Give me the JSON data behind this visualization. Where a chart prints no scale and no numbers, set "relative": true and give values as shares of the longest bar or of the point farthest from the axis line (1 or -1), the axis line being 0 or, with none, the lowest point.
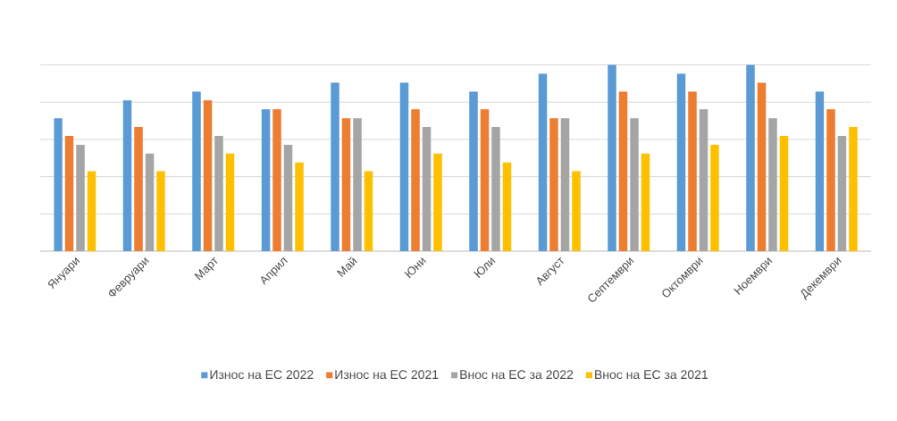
{
  "chart_data": {
    "type": "bar",
    "relative": true,
    "grid": "y",
    "legend": "bottom",
    "categories": [
      "Януари",
      "Февруари",
      "Март",
      "Април",
      "Май",
      "Юни",
      "Юли",
      "Август",
      "Септември",
      "Октомври",
      "Ноември",
      "Декември"
    ],
    "series": [
      {
        "name": "Износ на ЕС 2022",
        "color": "#5b9bd5",
        "values": [
          0.714,
          0.81,
          0.857,
          0.762,
          0.905,
          0.905,
          0.857,
          0.952,
          1,
          0.952,
          1,
          0.857
        ]
      },
      {
        "name": "Износ на ЕС 2021",
        "color": "#ed7d31",
        "values": [
          0.619,
          0.667,
          0.81,
          0.762,
          0.714,
          0.762,
          0.762,
          0.714,
          0.857,
          0.857,
          0.905,
          0.762
        ]
      },
      {
        "name": "Внос на ЕС за 2022",
        "color": "#a5a5a5",
        "values": [
          0.571,
          0.524,
          0.619,
          0.571,
          0.714,
          0.667,
          0.667,
          0.714,
          0.714,
          0.762,
          0.714,
          0.619
        ]
      },
      {
        "name": "Внос на ЕС за 2021",
        "color": "#ffc000",
        "values": [
          0.429,
          0.429,
          0.524,
          0.476,
          0.429,
          0.524,
          0.476,
          0.429,
          0.524,
          0.571,
          0.619,
          0.667
        ]
      }
    ]
  }
}
